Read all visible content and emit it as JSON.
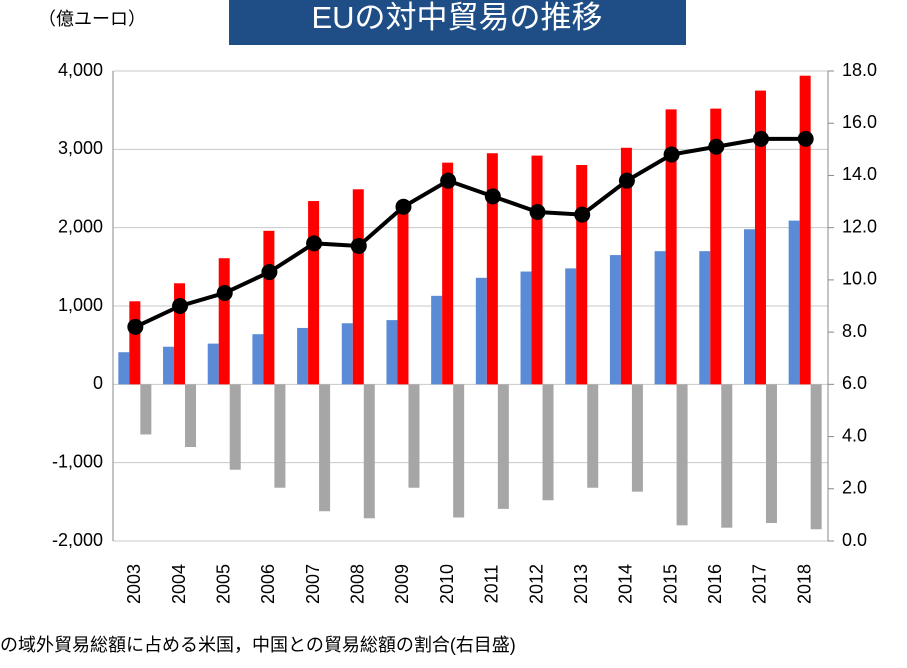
{
  "chart_data": {
    "type": "bar",
    "title": "EUの対中貿易の推移",
    "unit_label": "（億ユーロ）",
    "footnote": "の域外貿易総額に占める米国，中国との貿易総額の割合(右目盛)",
    "categories": [
      "2003",
      "2004",
      "2005",
      "2006",
      "2007",
      "2008",
      "2009",
      "2010",
      "2011",
      "2012",
      "2013",
      "2014",
      "2015",
      "2016",
      "2017",
      "2018"
    ],
    "series": [
      {
        "type": "bar",
        "color": "#5b8bd6",
        "values": [
          410,
          480,
          520,
          640,
          720,
          780,
          820,
          1130,
          1360,
          1440,
          1480,
          1650,
          1700,
          1700,
          1980,
          2090
        ]
      },
      {
        "type": "bar",
        "color": "#ff0000",
        "values": [
          1060,
          1290,
          1610,
          1960,
          2340,
          2490,
          2220,
          2830,
          2950,
          2920,
          2800,
          3020,
          3510,
          3520,
          3750,
          3940
        ]
      },
      {
        "type": "bar",
        "color": "#a6a6a6",
        "values": [
          -640,
          -800,
          -1090,
          -1320,
          -1620,
          -1710,
          -1320,
          -1700,
          -1590,
          -1480,
          -1320,
          -1370,
          -1800,
          -1830,
          -1770,
          -1850
        ]
      },
      {
        "type": "line",
        "axis": "y2",
        "color": "#000000",
        "values": [
          8.2,
          9.0,
          9.5,
          10.3,
          11.4,
          11.3,
          12.8,
          13.8,
          13.2,
          12.6,
          12.5,
          13.8,
          14.8,
          15.1,
          15.4,
          15.4
        ]
      }
    ],
    "ylim": [
      -2000,
      4000
    ],
    "yticks": [
      {
        "value": -2000,
        "label": "-2,000"
      },
      {
        "value": -1000,
        "label": "-1,000"
      },
      0,
      {
        "value": 1000,
        "label": "1,000"
      },
      {
        "value": 2000,
        "label": "2,000"
      },
      {
        "value": 3000,
        "label": "3,000"
      },
      {
        "value": 4000,
        "label": "4,000"
      }
    ],
    "y2lim": [
      0,
      18
    ],
    "y2ticks": [
      {
        "value": 0,
        "label": "0.0"
      },
      {
        "value": 2,
        "label": "2.0"
      },
      {
        "value": 4,
        "label": "4.0"
      },
      {
        "value": 6,
        "label": "6.0"
      },
      {
        "value": 8,
        "label": "8.0"
      },
      {
        "value": 10,
        "label": "10.0"
      },
      {
        "value": 12,
        "label": "12.0"
      },
      {
        "value": 14,
        "label": "14.0"
      },
      {
        "value": 16,
        "label": "16.0"
      },
      {
        "value": 18,
        "label": "18.0"
      }
    ],
    "grid": true
  }
}
